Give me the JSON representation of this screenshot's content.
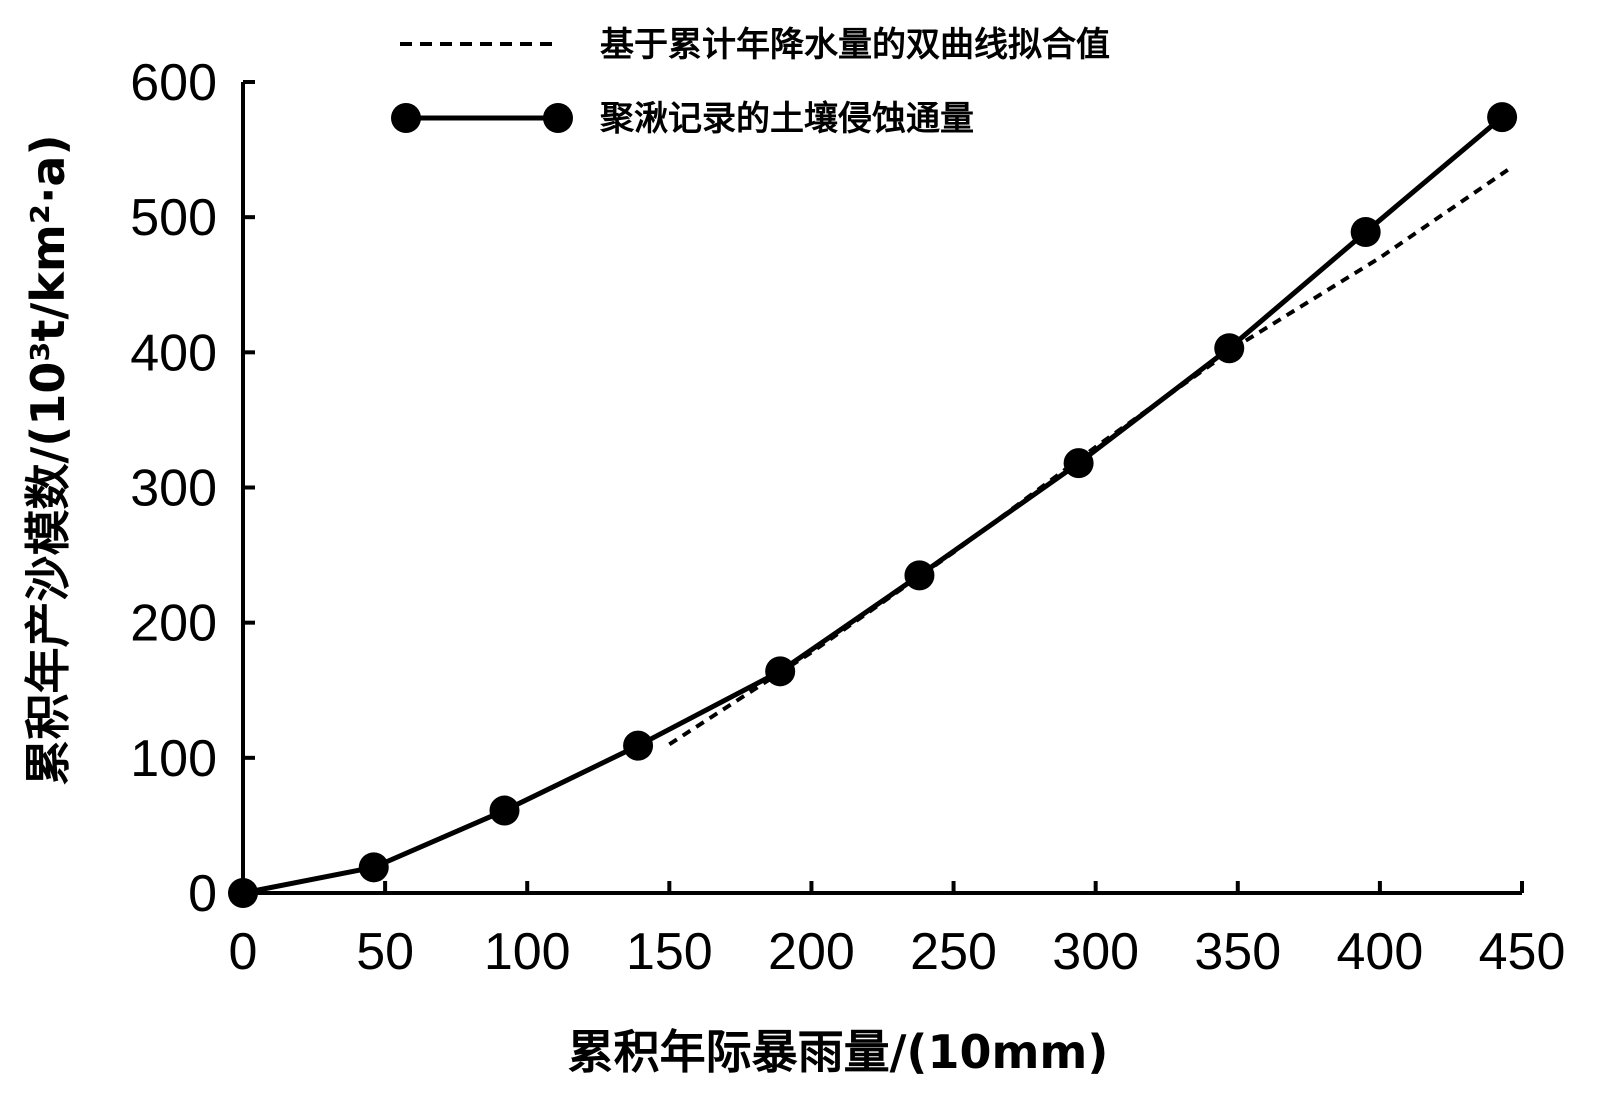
{
  "chart_data": {
    "type": "line",
    "xlabel": "累积年际暴雨量/(10mm)",
    "ylabel": "累积年产沙模数/(10³t/km²·a)",
    "xlim": [
      0,
      450
    ],
    "ylim": [
      0,
      600
    ],
    "xticks": [
      0,
      50,
      100,
      150,
      200,
      250,
      300,
      350,
      400,
      450
    ],
    "yticks": [
      0,
      100,
      200,
      300,
      400,
      500,
      600
    ],
    "xtick_labels": [
      "0",
      "50",
      "100",
      "150",
      "200",
      "250",
      "300",
      "350",
      "400",
      "450"
    ],
    "ytick_labels": [
      "0",
      "100",
      "200",
      "300",
      "400",
      "500",
      "600"
    ],
    "grid": false,
    "legend_position": "top-center",
    "series": [
      {
        "name": "基于累计年降水量的双曲线拟合值",
        "style": "dashed",
        "color": "#000000",
        "x": [
          150,
          200,
          250,
          300,
          350,
          400,
          445
        ],
        "y": [
          110,
          178,
          252,
          330,
          405,
          470,
          535
        ]
      },
      {
        "name": "聚湫记录的土壤侵蚀通量",
        "style": "solid-with-markers",
        "color": "#000000",
        "x": [
          0,
          46,
          92,
          139,
          189,
          238,
          294,
          347,
          395,
          443
        ],
        "y": [
          0,
          19,
          61,
          109,
          164,
          235,
          318,
          403,
          489,
          574
        ]
      }
    ]
  }
}
